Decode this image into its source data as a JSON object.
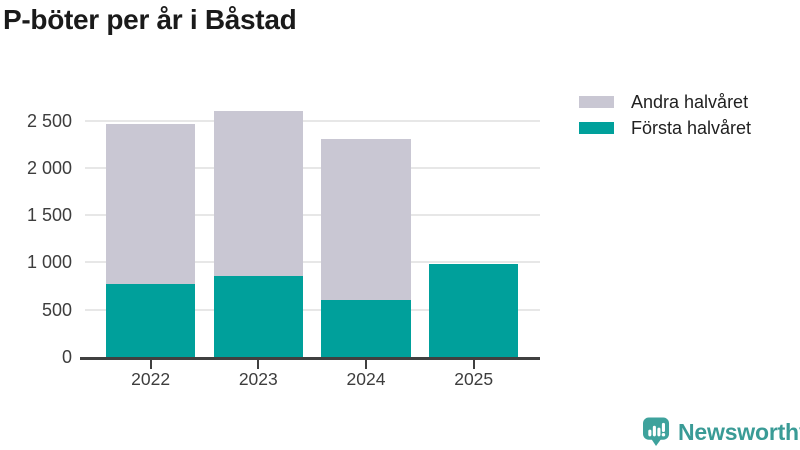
{
  "chart_data": {
    "type": "bar",
    "stacked": true,
    "title": "P-böter per år i Båstad",
    "categories": [
      "2022",
      "2023",
      "2024",
      "2025"
    ],
    "series": [
      {
        "name": "Första halvåret",
        "color": "#00A09B",
        "values": [
          770,
          860,
          605,
          985
        ]
      },
      {
        "name": "Andra halvåret",
        "color": "#C9C7D3",
        "values": [
          1690,
          1745,
          1695,
          0
        ]
      }
    ],
    "stack_order_bottom_to_top": [
      "Första halvåret",
      "Andra halvåret"
    ],
    "totals": [
      2460,
      2605,
      2300,
      985
    ],
    "xlabel": "",
    "ylabel": "",
    "ylim": [
      0,
      2670
    ],
    "yticks": [
      0,
      500,
      1000,
      1500,
      2000,
      2500
    ],
    "ytick_labels": [
      "0",
      "500",
      "1 000",
      "1 500",
      "2 000",
      "2 500"
    ],
    "grid": "horizontal",
    "legend_position": "top-right",
    "legend": [
      {
        "label": "Andra halvåret",
        "color": "#C9C7D3"
      },
      {
        "label": "Första halvåret",
        "color": "#00A09B"
      }
    ]
  },
  "colors": {
    "bar_teal": "#00A09B",
    "bar_gray": "#C9C7D3",
    "axis": "#404040",
    "grid": "#E7E7E7",
    "tick_text": "#3D3D3D",
    "title_text": "#1A1A1A",
    "logo_teal": "#3EA29C",
    "logo_text_teal": "#3A9B96"
  },
  "branding": {
    "logo_text": "Newsworthy",
    "logo_icon": "bar-chart-speech-bubble-icon"
  }
}
